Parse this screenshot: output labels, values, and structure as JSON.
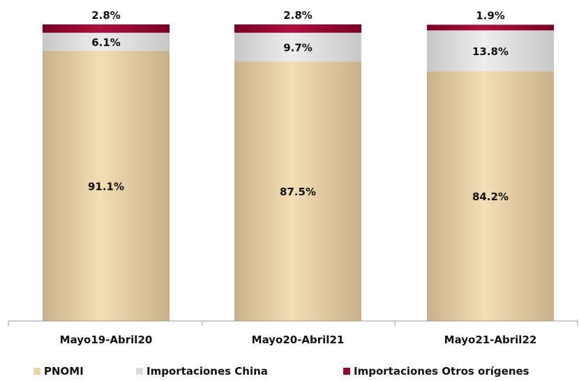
{
  "chart_data": {
    "type": "bar",
    "stacked": true,
    "categories": [
      "Mayo19-Abril20",
      "Mayo20-Abril21",
      "Mayo21-Abril22"
    ],
    "series": [
      {
        "name": "PNOMI",
        "color": "#EAD3A8",
        "values": [
          91.1,
          87.5,
          84.2
        ],
        "labels": [
          "91.1%",
          "87.5%",
          "84.2%"
        ]
      },
      {
        "name": "Importaciones China",
        "color": "#DCDCDC",
        "values": [
          6.1,
          9.7,
          13.8
        ],
        "labels": [
          "6.1%",
          "9.7%",
          "13.8%"
        ]
      },
      {
        "name": "Importaciones Otros orígenes",
        "color": "#A0002E",
        "values": [
          2.8,
          2.8,
          1.9
        ],
        "labels": [
          "2.8%",
          "2.8%",
          "1.9%"
        ]
      }
    ],
    "ylim": [
      0,
      100
    ],
    "grid": false,
    "legend_position": "bottom",
    "title": "",
    "xlabel": "",
    "ylabel": ""
  }
}
